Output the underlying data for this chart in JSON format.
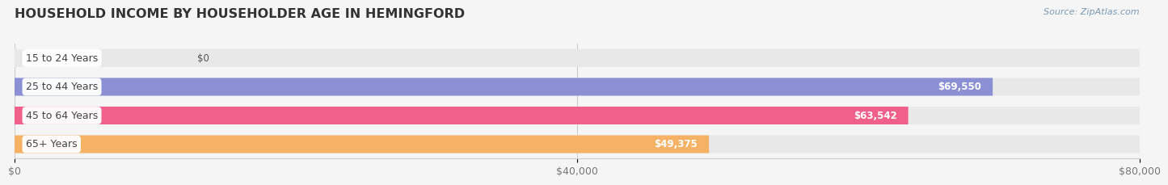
{
  "title": "HOUSEHOLD INCOME BY HOUSEHOLDER AGE IN HEMINGFORD",
  "source": "Source: ZipAtlas.com",
  "categories": [
    "15 to 24 Years",
    "25 to 44 Years",
    "45 to 64 Years",
    "65+ Years"
  ],
  "values": [
    0,
    69550,
    63542,
    49375
  ],
  "bar_colors": [
    "#72cfc9",
    "#8b8fd4",
    "#f0608a",
    "#f5b264"
  ],
  "value_labels": [
    "$0",
    "$69,550",
    "$63,542",
    "$49,375"
  ],
  "xlim": [
    0,
    80000
  ],
  "xticks": [
    0,
    40000,
    80000
  ],
  "xtick_labels": [
    "$0",
    "$40,000",
    "$80,000"
  ],
  "background_color": "#f5f5f5",
  "bar_bg_color": "#e8e8e8",
  "title_fontsize": 11.5,
  "bar_height": 0.62,
  "label_fontsize": 9,
  "value_fontsize": 8.5,
  "tick_fontsize": 9
}
